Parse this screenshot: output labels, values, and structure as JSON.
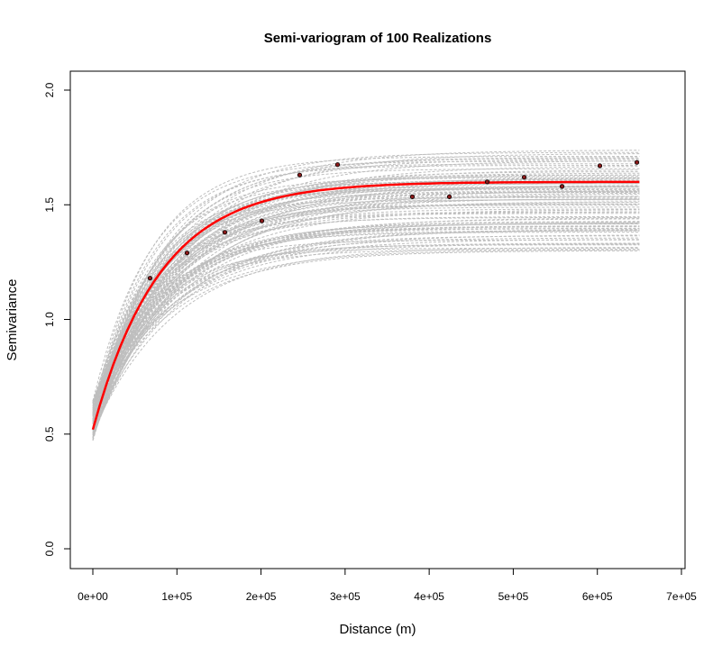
{
  "chart_data": {
    "type": "line",
    "title": "Semi-variogram of 100 Realizations",
    "xlabel": "Distance (m)",
    "ylabel": "Semivariance",
    "xlim": [
      0,
      700000
    ],
    "ylim": [
      0,
      2.0
    ],
    "x_ticks": [
      0,
      100000,
      200000,
      300000,
      400000,
      500000,
      600000,
      700000
    ],
    "x_tick_labels": [
      "0e+00",
      "1e+05",
      "2e+05",
      "3e+05",
      "4e+05",
      "5e+05",
      "6e+05",
      "7e+05"
    ],
    "y_ticks": [
      0.0,
      0.5,
      1.0,
      1.5,
      2.0
    ],
    "y_tick_labels": [
      "0.0",
      "0.5",
      "1.0",
      "1.5",
      "2.0"
    ],
    "grid": false,
    "legend": "none",
    "fitted_model": {
      "color": "#ff0000",
      "nugget": 0.52,
      "sill": 1.6,
      "range_param": 80000,
      "x_max": 650000
    },
    "realizations": {
      "count": 100,
      "color": "#bebebe",
      "style": "dashed",
      "nugget_min": 0.47,
      "nugget_max": 0.65,
      "sill_min": 1.3,
      "sill_max": 1.74,
      "range_min": 65000,
      "range_max": 110000,
      "x_max": 650000
    },
    "empirical_points": {
      "color": "#8b1a1a",
      "x": [
        68000,
        112000,
        157000,
        201000,
        246000,
        291000,
        380000,
        424000,
        469000,
        513000,
        558000,
        603000,
        647000
      ],
      "y": [
        1.18,
        1.29,
        1.38,
        1.43,
        1.63,
        1.675,
        1.535,
        1.535,
        1.6,
        1.62,
        1.58,
        1.67,
        1.685
      ]
    }
  }
}
